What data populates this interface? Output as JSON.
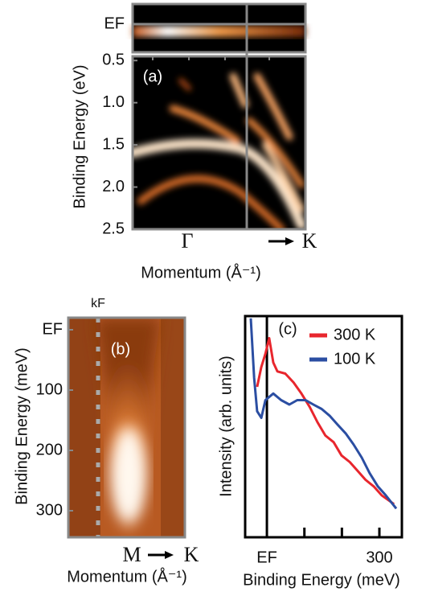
{
  "chart_data": [
    {
      "type": "image",
      "panel_label": "(a)",
      "ef_label": "EF",
      "ylabel": "Binding Energy (eV)",
      "xlabel": "Momentum (Å⁻¹)",
      "x_labels": [
        "Γ",
        "K"
      ],
      "ylim": [
        2.5,
        0.45
      ],
      "yticks": [
        0.5,
        {
          "value": 1,
          "label": "1.0"
        },
        1.5,
        {
          "value": 2,
          "label": "2.0"
        },
        2.5
      ]
    },
    {
      "type": "image",
      "panel_label": "(b)",
      "kf_label": "kF",
      "ylabel": "Binding Energy (meV)",
      "xlabel": "Momentum (Å⁻¹)",
      "x_labels": [
        "M",
        "K"
      ],
      "ylim": [
        344,
        -20
      ],
      "yticks": [
        {
          "value": 0,
          "label": "EF"
        },
        100,
        200,
        300
      ]
    },
    {
      "type": "line",
      "panel_label": "(c)",
      "xlabel": "Binding Energy (meV)",
      "ylabel": "Intensity (arb. units)",
      "xlim": [
        -58,
        360
      ],
      "ylim": [
        0,
        100
      ],
      "xticks": [
        {
          "value": 0,
          "label": "EF"
        },
        300
      ],
      "xminor_ticks": [
        100,
        200
      ],
      "legend": "top-right",
      "series": [
        {
          "name": "300 K",
          "color": "#e8262d",
          "x": [
            -26,
            -15,
            -4,
            6,
            17,
            28,
            49,
            71,
            92,
            114,
            135,
            156,
            178,
            199,
            221,
            242,
            263,
            285,
            306,
            339
          ],
          "values": [
            68,
            77,
            83,
            90,
            79,
            75,
            74,
            70,
            65,
            59,
            52,
            46,
            43,
            37,
            34,
            30,
            26,
            23,
            19,
            15
          ]
        },
        {
          "name": "100 K",
          "color": "#2b4ea2",
          "x": [
            -43,
            -34,
            -26,
            -15,
            -4,
            17,
            38,
            60,
            81,
            103,
            124,
            146,
            167,
            188,
            210,
            231,
            253,
            274,
            296,
            317,
            345
          ],
          "values": [
            99,
            72,
            57,
            54,
            62,
            65,
            62,
            60,
            62,
            62,
            60,
            58,
            55,
            51,
            47,
            42,
            36,
            29,
            23,
            19,
            13
          ]
        }
      ]
    }
  ]
}
